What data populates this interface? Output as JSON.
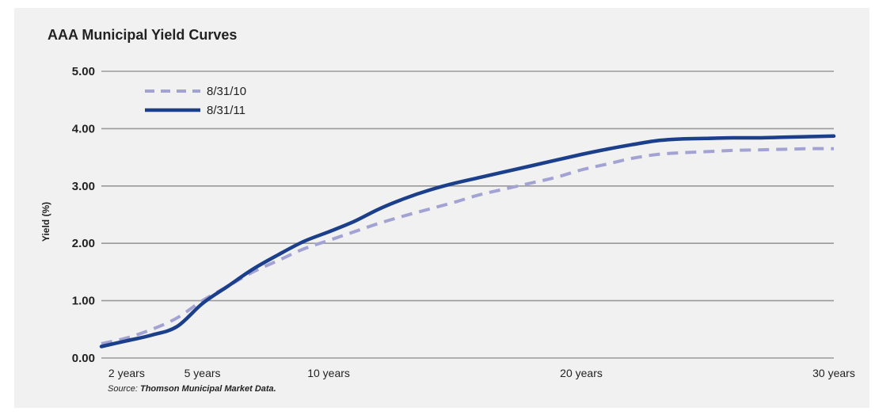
{
  "chart_data": {
    "type": "line",
    "title": "AAA Municipal Yield Curves",
    "ylabel": "Yield (%)",
    "xlabel": "",
    "ylim": [
      0,
      5
    ],
    "xlim": [
      1,
      30
    ],
    "y_ticks": [
      "0.00",
      "1.00",
      "2.00",
      "3.00",
      "4.00",
      "5.00"
    ],
    "y_tick_values": [
      0,
      1,
      2,
      3,
      4,
      5
    ],
    "x_ticks": [
      {
        "label": "2 years",
        "value": 2
      },
      {
        "label": "5 years",
        "value": 5
      },
      {
        "label": "10 years",
        "value": 10
      },
      {
        "label": "20 years",
        "value": 20
      },
      {
        "label": "30 years",
        "value": 30
      }
    ],
    "grid": "horizontal",
    "legend_position": "top-left",
    "series": [
      {
        "name": "8/31/10",
        "style": "dashed",
        "color": "#a3a3d3",
        "x": [
          1,
          2,
          3,
          4,
          5,
          6,
          7,
          8,
          9,
          10,
          11,
          12,
          13,
          14,
          15,
          16,
          17,
          18,
          19,
          20,
          21,
          22,
          23,
          24,
          25,
          26,
          27,
          28,
          29,
          30
        ],
        "y": [
          0.25,
          0.35,
          0.5,
          0.7,
          1.0,
          1.25,
          1.5,
          1.7,
          1.9,
          2.05,
          2.2,
          2.35,
          2.48,
          2.6,
          2.72,
          2.85,
          2.95,
          3.05,
          3.15,
          3.28,
          3.38,
          3.48,
          3.55,
          3.58,
          3.6,
          3.62,
          3.63,
          3.64,
          3.65,
          3.65
        ]
      },
      {
        "name": "8/31/11",
        "style": "solid",
        "color": "#1b3f8b",
        "x": [
          1,
          2,
          3,
          4,
          5,
          6,
          7,
          8,
          9,
          10,
          11,
          12,
          13,
          14,
          15,
          16,
          17,
          18,
          19,
          20,
          21,
          22,
          23,
          24,
          25,
          26,
          27,
          28,
          29,
          30
        ],
        "y": [
          0.2,
          0.3,
          0.4,
          0.55,
          0.95,
          1.25,
          1.55,
          1.8,
          2.03,
          2.2,
          2.38,
          2.6,
          2.78,
          2.93,
          3.05,
          3.15,
          3.25,
          3.35,
          3.45,
          3.55,
          3.64,
          3.72,
          3.79,
          3.82,
          3.83,
          3.84,
          3.84,
          3.85,
          3.86,
          3.87
        ]
      }
    ]
  },
  "source": {
    "prefix": "Source:",
    "text": "Thomson Municipal Market Data."
  }
}
